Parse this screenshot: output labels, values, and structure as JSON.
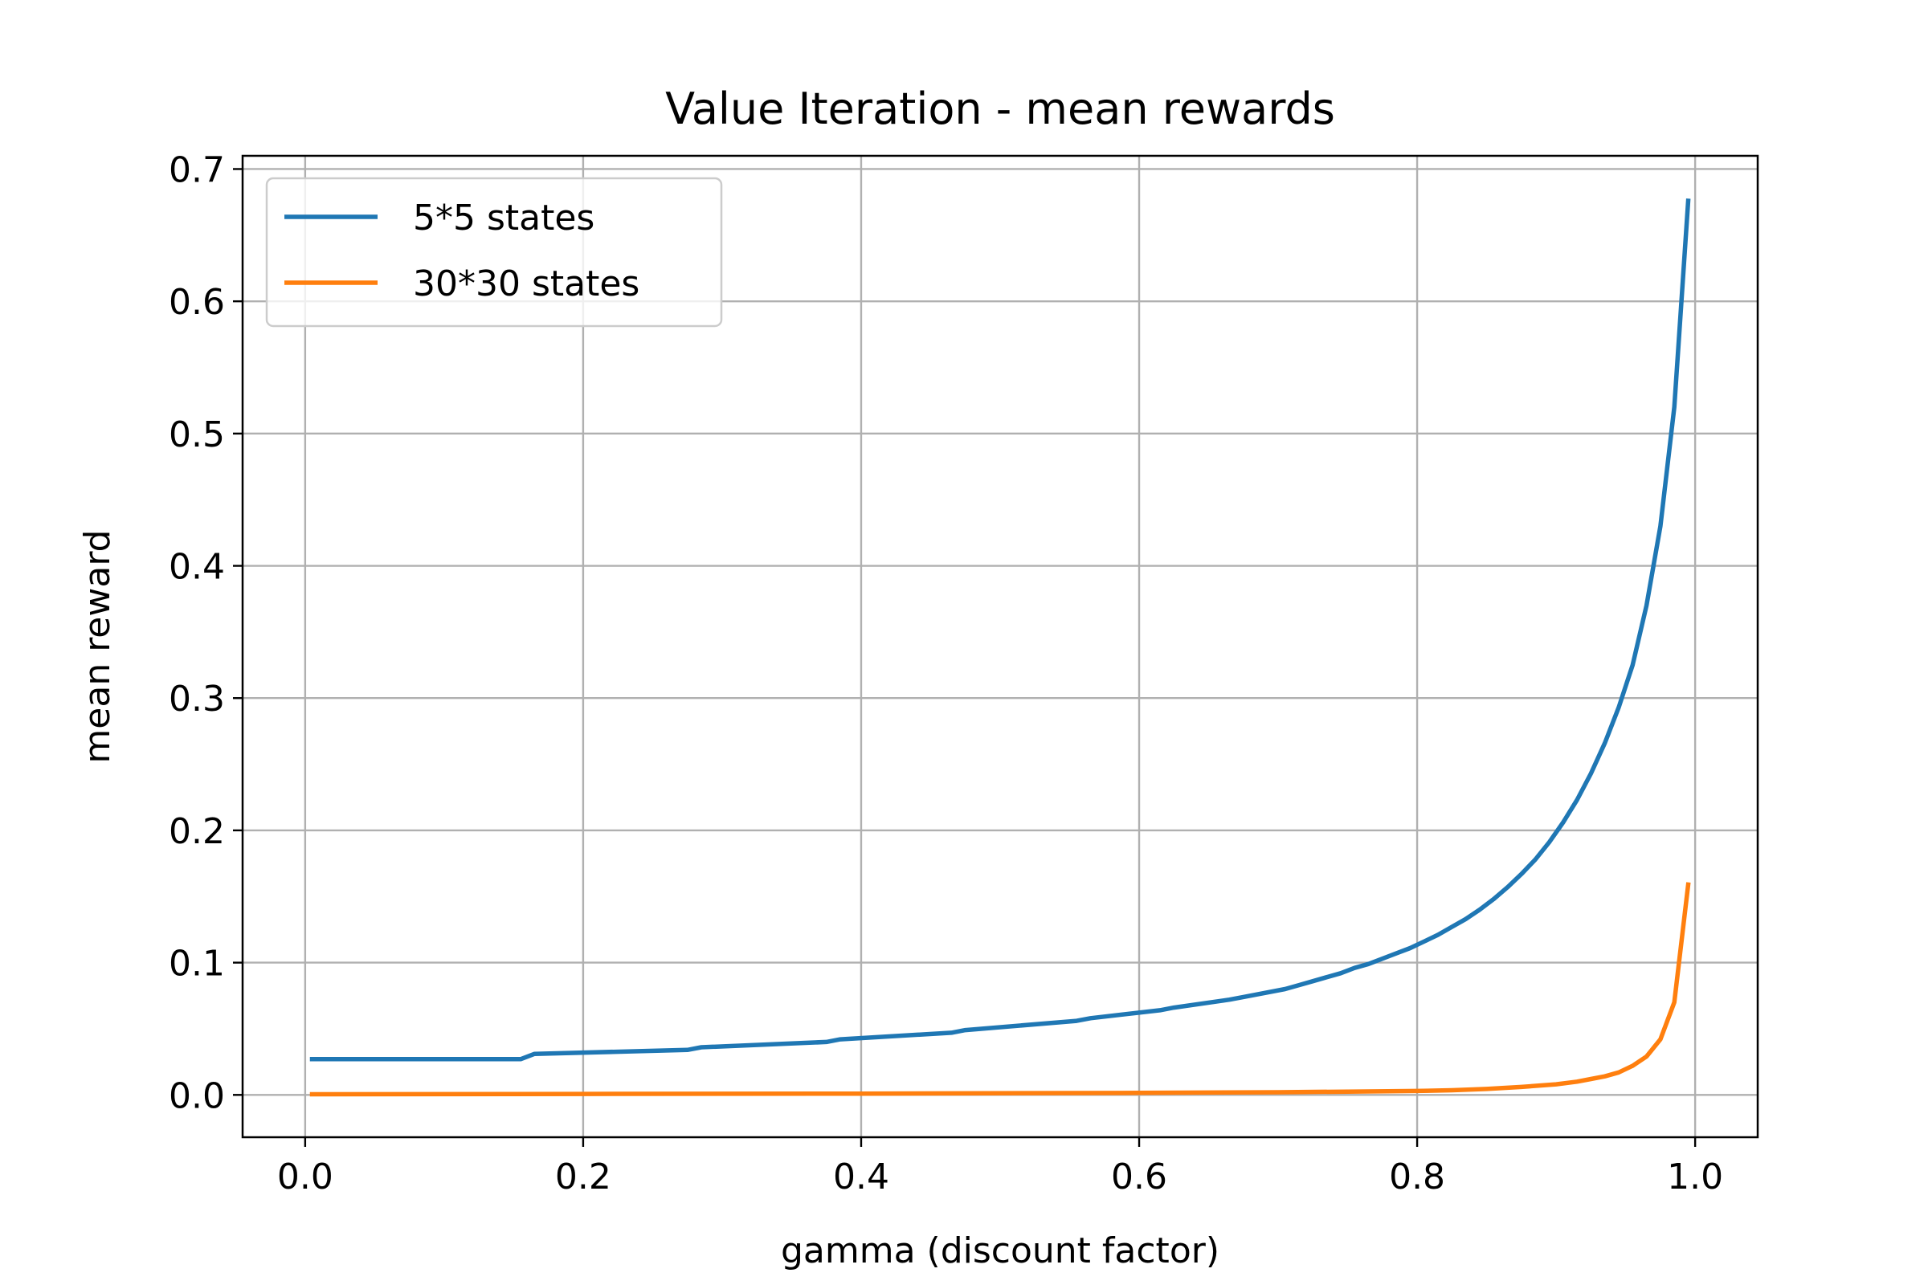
{
  "chart_data": {
    "type": "line",
    "title": "Value Iteration - mean rewards",
    "xlabel": "gamma (discount factor)",
    "ylabel": "mean reward",
    "xlim": [
      -0.045,
      1.045
    ],
    "ylim": [
      -0.032,
      0.71
    ],
    "xticks": [
      0.0,
      0.2,
      0.4,
      0.6,
      0.8,
      1.0
    ],
    "xtick_labels": [
      "0.0",
      "0.2",
      "0.4",
      "0.6",
      "0.8",
      "1.0"
    ],
    "yticks": [
      0.0,
      0.1,
      0.2,
      0.3,
      0.4,
      0.5,
      0.6,
      0.7
    ],
    "ytick_labels": [
      "0.0",
      "0.1",
      "0.2",
      "0.3",
      "0.4",
      "0.5",
      "0.6",
      "0.7"
    ],
    "grid": true,
    "legend_position": "upper-left",
    "series": [
      {
        "name": "5*5 states",
        "color": "#1f77b4",
        "x": [
          0.005,
          0.155,
          0.165,
          0.275,
          0.285,
          0.375,
          0.385,
          0.465,
          0.475,
          0.555,
          0.565,
          0.615,
          0.625,
          0.665,
          0.675,
          0.705,
          0.715,
          0.725,
          0.735,
          0.745,
          0.755,
          0.765,
          0.775,
          0.785,
          0.795,
          0.805,
          0.815,
          0.825,
          0.835,
          0.845,
          0.855,
          0.865,
          0.875,
          0.885,
          0.895,
          0.905,
          0.915,
          0.925,
          0.935,
          0.945,
          0.955,
          0.965,
          0.975,
          0.985,
          0.995
        ],
        "y": [
          0.027,
          0.027,
          0.031,
          0.034,
          0.036,
          0.04,
          0.042,
          0.047,
          0.049,
          0.056,
          0.058,
          0.064,
          0.066,
          0.072,
          0.074,
          0.08,
          0.083,
          0.086,
          0.089,
          0.092,
          0.096,
          0.099,
          0.103,
          0.107,
          0.111,
          0.116,
          0.121,
          0.127,
          0.133,
          0.14,
          0.148,
          0.157,
          0.167,
          0.178,
          0.191,
          0.206,
          0.223,
          0.243,
          0.266,
          0.293,
          0.325,
          0.37,
          0.43,
          0.52,
          0.676
        ]
      },
      {
        "name": "30*30 states",
        "color": "#ff7f0e",
        "x": [
          0.005,
          0.2,
          0.4,
          0.6,
          0.7,
          0.75,
          0.8,
          0.825,
          0.85,
          0.875,
          0.9,
          0.915,
          0.925,
          0.935,
          0.945,
          0.955,
          0.965,
          0.975,
          0.985,
          0.995
        ],
        "y": [
          0.0005,
          0.0007,
          0.001,
          0.0015,
          0.002,
          0.0025,
          0.003,
          0.0035,
          0.0045,
          0.006,
          0.008,
          0.01,
          0.012,
          0.014,
          0.017,
          0.022,
          0.029,
          0.042,
          0.07,
          0.159
        ]
      }
    ]
  }
}
